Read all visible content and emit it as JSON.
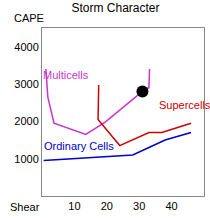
{
  "chart_data": {
    "type": "line",
    "title": "Storm Character",
    "xlabel": "Shear",
    "ylabel": "CAPE",
    "xlim": [
      0,
      50
    ],
    "ylim": [
      0,
      4500
    ],
    "xticks": [
      10,
      20,
      30,
      40
    ],
    "yticks": [
      1000,
      2000,
      3000,
      4000
    ],
    "grid": false,
    "series": [
      {
        "name": "Multicells",
        "color": "#cc33cc",
        "x": [
          1.2,
          1.8,
          3.7,
          13.5,
          19.4,
          31,
          33,
          33.2
        ],
        "values": [
          3400,
          2650,
          1950,
          1650,
          1975,
          2800,
          2900,
          3400
        ],
        "label_x": 7.5,
        "label_y": 3250
      },
      {
        "name": "Supercells",
        "color": "#cc0000",
        "x": [
          17.5,
          17.3,
          24,
          33,
          37,
          46
        ],
        "values": [
          2975,
          2050,
          1350,
          1700,
          1700,
          1950
        ],
        "label_x": 44,
        "label_y": 2450
      },
      {
        "name": "Ordinary Cells",
        "color": "#0000cc",
        "x": [
          0.5,
          10,
          20,
          28,
          33,
          38,
          46
        ],
        "values": [
          950,
          1000,
          1050,
          1100,
          1300,
          1500,
          1700
        ],
        "label_x": 11.5,
        "label_y": 1350
      }
    ],
    "point": {
      "x": 31,
      "y": 2800,
      "color": "#000000"
    }
  }
}
